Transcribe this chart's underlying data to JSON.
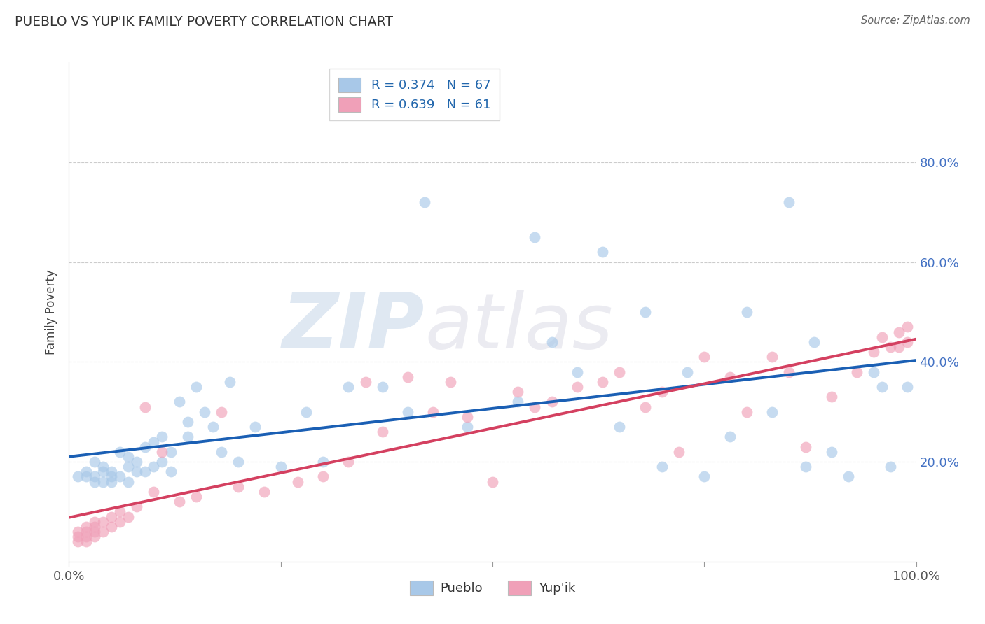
{
  "title": "PUEBLO VS YUP'IK FAMILY POVERTY CORRELATION CHART",
  "source_text": "Source: ZipAtlas.com",
  "ylabel": "Family Poverty",
  "xlim": [
    0,
    1.0
  ],
  "ylim": [
    0,
    1.0
  ],
  "xtick_labels": [
    "0.0%",
    "100.0%"
  ],
  "xtick_pos": [
    0.0,
    1.0
  ],
  "ytick_labels": [
    "20.0%",
    "40.0%",
    "60.0%",
    "80.0%"
  ],
  "ytick_pos": [
    0.2,
    0.4,
    0.6,
    0.8
  ],
  "pueblo_color": "#a8c8e8",
  "yupik_color": "#f0a0b8",
  "trendline_pueblo_color": "#1a5fb4",
  "trendline_yupik_color": "#d44060",
  "R_pueblo": 0.374,
  "N_pueblo": 67,
  "R_yupik": 0.639,
  "N_yupik": 61,
  "watermark_zip": "ZIP",
  "watermark_atlas": "atlas",
  "background_color": "#ffffff",
  "grid_color": "#cccccc",
  "pueblo_x": [
    0.01,
    0.02,
    0.02,
    0.03,
    0.03,
    0.03,
    0.04,
    0.04,
    0.04,
    0.05,
    0.05,
    0.05,
    0.06,
    0.06,
    0.07,
    0.07,
    0.07,
    0.08,
    0.08,
    0.09,
    0.09,
    0.1,
    0.1,
    0.11,
    0.11,
    0.12,
    0.12,
    0.13,
    0.14,
    0.14,
    0.15,
    0.16,
    0.17,
    0.18,
    0.19,
    0.2,
    0.22,
    0.25,
    0.28,
    0.3,
    0.33,
    0.37,
    0.4,
    0.42,
    0.47,
    0.53,
    0.55,
    0.57,
    0.6,
    0.63,
    0.65,
    0.68,
    0.7,
    0.73,
    0.75,
    0.78,
    0.8,
    0.83,
    0.85,
    0.87,
    0.88,
    0.9,
    0.92,
    0.95,
    0.96,
    0.97,
    0.99
  ],
  "pueblo_y": [
    0.17,
    0.17,
    0.18,
    0.16,
    0.17,
    0.2,
    0.16,
    0.18,
    0.19,
    0.16,
    0.17,
    0.18,
    0.17,
    0.22,
    0.16,
    0.19,
    0.21,
    0.18,
    0.2,
    0.18,
    0.23,
    0.19,
    0.24,
    0.2,
    0.25,
    0.18,
    0.22,
    0.32,
    0.25,
    0.28,
    0.35,
    0.3,
    0.27,
    0.22,
    0.36,
    0.2,
    0.27,
    0.19,
    0.3,
    0.2,
    0.35,
    0.35,
    0.3,
    0.72,
    0.27,
    0.32,
    0.65,
    0.44,
    0.38,
    0.62,
    0.27,
    0.5,
    0.19,
    0.38,
    0.17,
    0.25,
    0.5,
    0.3,
    0.72,
    0.19,
    0.44,
    0.22,
    0.17,
    0.38,
    0.35,
    0.19,
    0.35
  ],
  "yupik_x": [
    0.01,
    0.01,
    0.01,
    0.02,
    0.02,
    0.02,
    0.02,
    0.03,
    0.03,
    0.03,
    0.03,
    0.04,
    0.04,
    0.05,
    0.05,
    0.06,
    0.06,
    0.07,
    0.08,
    0.09,
    0.1,
    0.11,
    0.13,
    0.15,
    0.18,
    0.2,
    0.23,
    0.27,
    0.3,
    0.33,
    0.35,
    0.37,
    0.4,
    0.43,
    0.45,
    0.47,
    0.5,
    0.53,
    0.55,
    0.57,
    0.6,
    0.63,
    0.65,
    0.68,
    0.7,
    0.72,
    0.75,
    0.78,
    0.8,
    0.83,
    0.85,
    0.87,
    0.9,
    0.93,
    0.95,
    0.96,
    0.97,
    0.98,
    0.98,
    0.99,
    0.99
  ],
  "yupik_y": [
    0.04,
    0.05,
    0.06,
    0.04,
    0.05,
    0.06,
    0.07,
    0.05,
    0.06,
    0.07,
    0.08,
    0.06,
    0.08,
    0.07,
    0.09,
    0.08,
    0.1,
    0.09,
    0.11,
    0.31,
    0.14,
    0.22,
    0.12,
    0.13,
    0.3,
    0.15,
    0.14,
    0.16,
    0.17,
    0.2,
    0.36,
    0.26,
    0.37,
    0.3,
    0.36,
    0.29,
    0.16,
    0.34,
    0.31,
    0.32,
    0.35,
    0.36,
    0.38,
    0.31,
    0.34,
    0.22,
    0.41,
    0.37,
    0.3,
    0.41,
    0.38,
    0.23,
    0.33,
    0.38,
    0.42,
    0.45,
    0.43,
    0.43,
    0.46,
    0.44,
    0.47
  ]
}
